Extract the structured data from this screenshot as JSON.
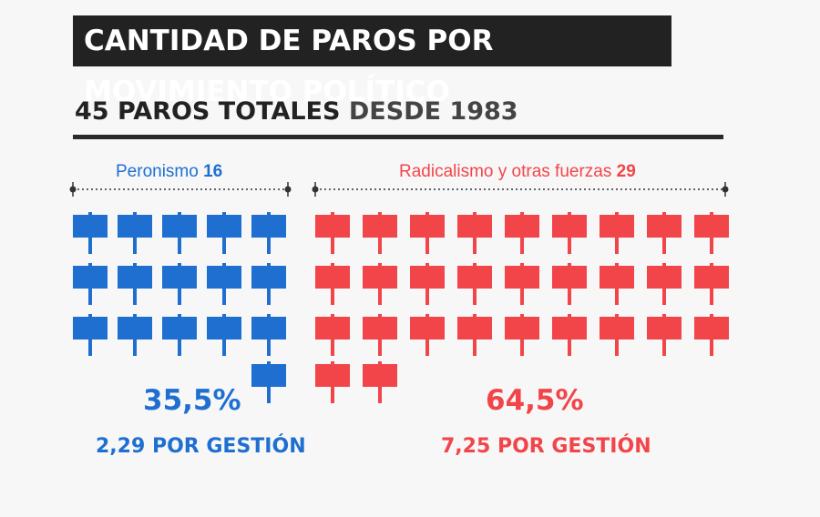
{
  "title": "CANTIDAD DE PAROS POR MOVIMIENTO POLÍTICO",
  "subtitle": {
    "bold": "45 PAROS TOTALES",
    "light": " DESDE 1983"
  },
  "colors": {
    "peronismo": "#1f6fd1",
    "radicalismo": "#f2454a",
    "dark": "#222222"
  },
  "chart_data": {
    "type": "pictogram",
    "title": "CANTIDAD DE PAROS POR MOVIMIENTO POLÍTICO",
    "subtitle": "45 PAROS TOTALES DESDE 1983",
    "total": 45,
    "icon": "protest-sign-icon",
    "series": [
      {
        "name": "Peronismo",
        "count_label": "16",
        "value": 16,
        "percent_label": "35,5%",
        "percent": 35.5,
        "per_gestion_label": "2,29 POR GESTIÓN",
        "per_gestion": 2.29,
        "color": "#1f6fd1"
      },
      {
        "name": "Radicalismo y otras fuerzas",
        "count_label": "29",
        "value": 29,
        "percent_label": "64,5%",
        "percent": 64.5,
        "per_gestion_label": "7,25 POR GESTIÓN",
        "per_gestion": 7.25,
        "color": "#f2454a"
      }
    ]
  }
}
